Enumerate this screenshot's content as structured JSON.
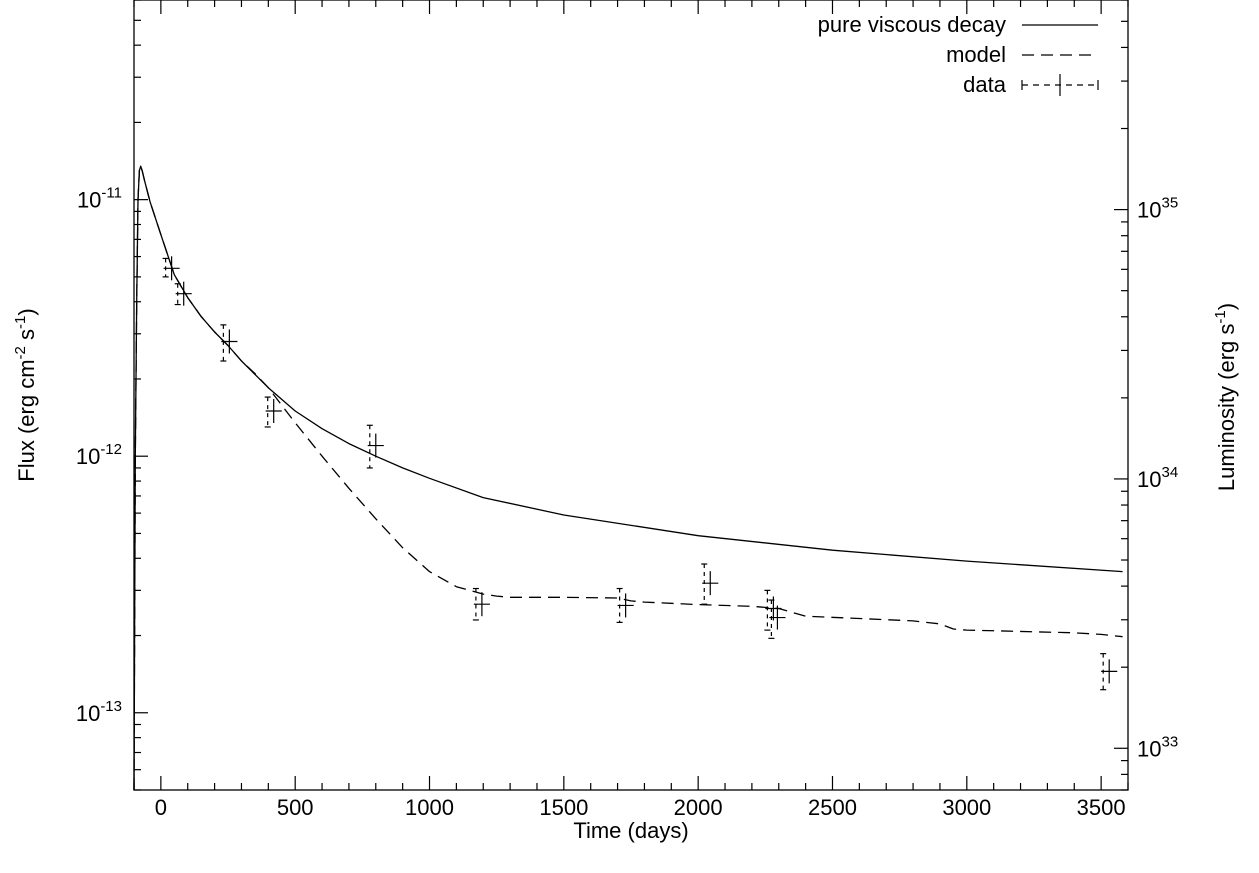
{
  "chart_data": {
    "type": "line",
    "xlabel": "Time (days)",
    "ylabel_left": {
      "base": "Flux (erg cm",
      "sup1": "-2",
      "mid": " s",
      "sup2": "-1",
      "end": ")"
    },
    "ylabel_right": {
      "base": "Luminosity (erg s",
      "sup1": "-1",
      "end": ")"
    },
    "xlim": [
      -100,
      3600
    ],
    "ylim_flux": [
      5e-14,
      6e-11
    ],
    "ylim_luminosity": [
      7e+32,
      6e+35
    ],
    "yscale": "log",
    "grid": false,
    "legend_position": "top-right",
    "x_ticks": [
      0,
      500,
      1000,
      1500,
      2000,
      2500,
      3000,
      3500
    ],
    "y_left_ticks": [
      {
        "value": 1e-11,
        "base": "10",
        "exp": "-11"
      },
      {
        "value": 1e-12,
        "base": "10",
        "exp": "-12"
      },
      {
        "value": 1e-13,
        "base": "10",
        "exp": "-13"
      }
    ],
    "y_right_ticks": [
      {
        "value": 1e+35,
        "base": "10",
        "exp": "35"
      },
      {
        "value": 1e+34,
        "base": "10",
        "exp": "34"
      },
      {
        "value": 1e+33,
        "base": "10",
        "exp": "33"
      }
    ],
    "series": [
      {
        "name": "pure viscous decay",
        "style": "solid",
        "x": [
          -100,
          -95,
          -90,
          -85,
          -80,
          -75,
          -70,
          -60,
          -40,
          0,
          50,
          100,
          150,
          200,
          250,
          300,
          400,
          500,
          600,
          700,
          800,
          900,
          1000,
          1200,
          1500,
          2000,
          2500,
          3000,
          3580
        ],
        "y": [
          5e-14,
          1e-12,
          4e-12,
          1e-11,
          1.3e-11,
          1.35e-11,
          1.3e-11,
          1.18e-11,
          9.8e-12,
          7.3e-12,
          5.1e-12,
          4.15e-12,
          3.5e-12,
          3.05e-12,
          2.7e-12,
          2.35e-12,
          1.85e-12,
          1.5e-12,
          1.28e-12,
          1.12e-12,
          1e-12,
          9e-13,
          8.2e-13,
          6.9e-13,
          5.9e-13,
          4.9e-13,
          4.3e-13,
          3.9e-13,
          3.55e-13
        ]
      },
      {
        "name": "model",
        "style": "dashed",
        "x": [
          -100,
          -95,
          -90,
          -85,
          -80,
          -75,
          -70,
          -60,
          -40,
          0,
          50,
          100,
          150,
          200,
          250,
          300,
          350,
          400,
          500,
          600,
          700,
          800,
          900,
          1000,
          1100,
          1200,
          1250,
          1300,
          1500,
          1700,
          1750,
          1800,
          2000,
          2200,
          2300,
          2400,
          2600,
          2800,
          2900,
          2950,
          3000,
          3400,
          3500,
          3580
        ],
        "y": [
          5e-14,
          1e-12,
          4e-12,
          1e-11,
          1.3e-11,
          1.35e-11,
          1.3e-11,
          1.18e-11,
          9.8e-12,
          7.3e-12,
          5.1e-12,
          4.15e-12,
          3.5e-12,
          3.05e-12,
          2.7e-12,
          2.35e-12,
          2.1e-12,
          1.85e-12,
          1.35e-12,
          1e-12,
          7.5e-13,
          5.7e-13,
          4.4e-13,
          3.55e-13,
          3.1e-13,
          2.9e-13,
          2.85e-13,
          2.82e-13,
          2.82e-13,
          2.8e-13,
          2.73e-13,
          2.7e-13,
          2.64e-13,
          2.6e-13,
          2.55e-13,
          2.38e-13,
          2.33e-13,
          2.28e-13,
          2.22e-13,
          2.12e-13,
          2.1e-13,
          2.05e-13,
          2.02e-13,
          1.98e-13
        ]
      },
      {
        "name": "data",
        "style": "errorbars",
        "x": [
          40,
          85,
          255,
          420,
          800,
          1195,
          1730,
          2045,
          2280,
          2295,
          3530
        ],
        "y": [
          5.4e-12,
          4.3e-12,
          2.8e-12,
          1.5e-12,
          1.1e-12,
          2.65e-13,
          2.62e-13,
          3.2e-13,
          2.55e-13,
          2.35e-13,
          1.45e-13
        ],
        "xerr": [
          30,
          30,
          30,
          30,
          30,
          30,
          30,
          30,
          30,
          30,
          30
        ],
        "ylow": [
          5e-12,
          3.9e-12,
          2.35e-12,
          1.3e-12,
          9e-13,
          2.3e-13,
          2.25e-13,
          2.65e-13,
          2.1e-13,
          1.95e-13,
          1.23e-13
        ],
        "yhigh": [
          5.9e-12,
          4.7e-12,
          3.25e-12,
          1.7e-12,
          1.32e-12,
          3.05e-13,
          3.05e-13,
          3.8e-13,
          3e-13,
          2.75e-13,
          1.7e-13
        ]
      }
    ]
  }
}
